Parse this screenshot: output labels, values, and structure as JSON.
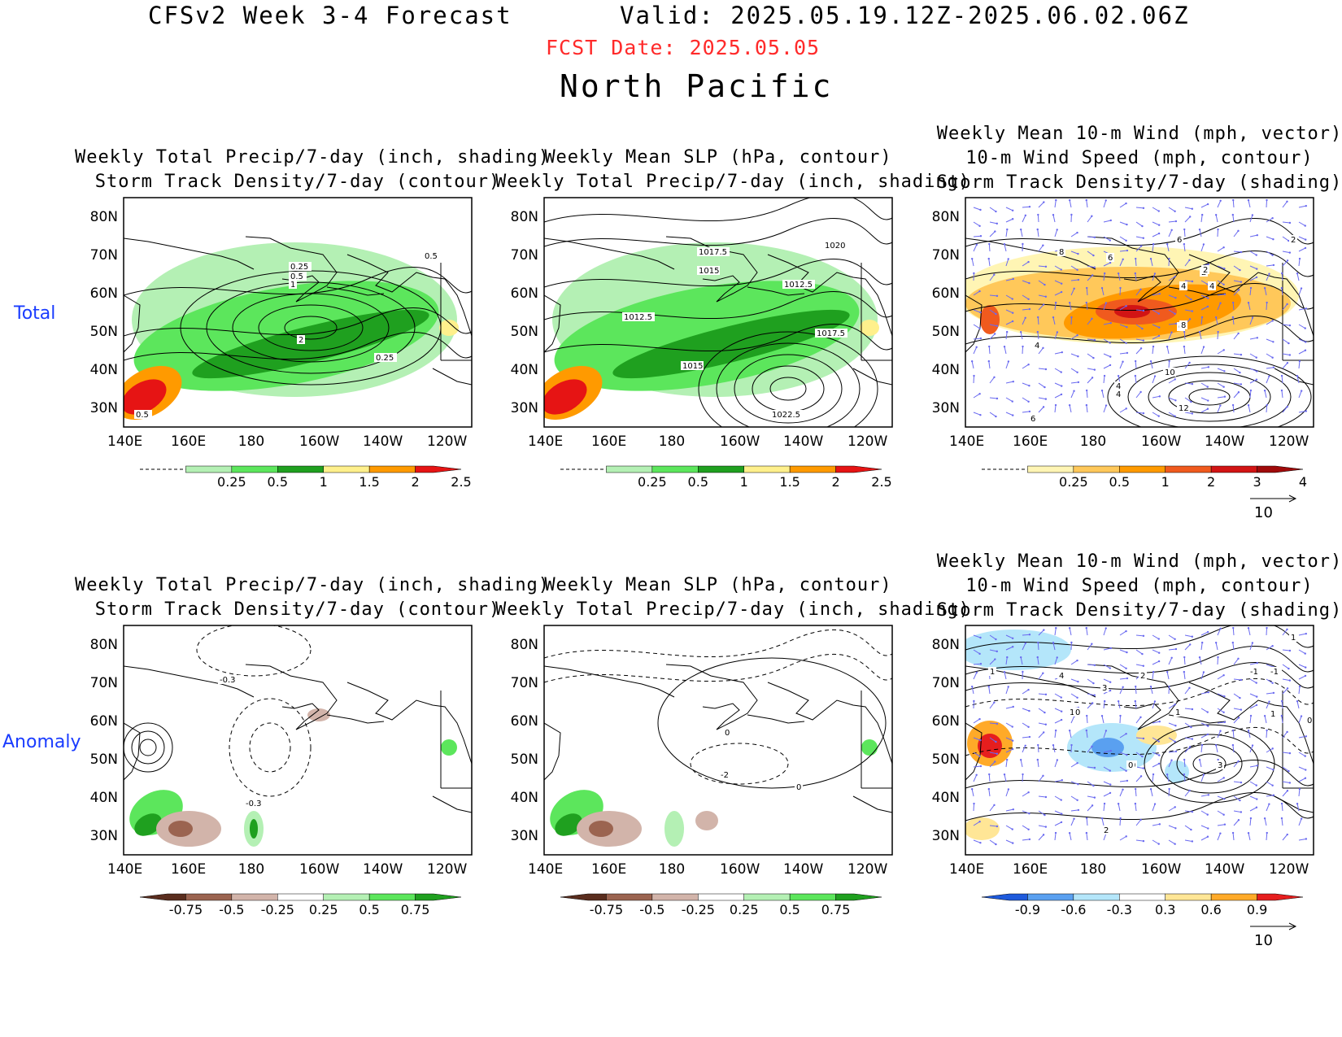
{
  "header": {
    "title": "CFSv2 Week 3-4 Forecast",
    "valid": "Valid: 2025.05.19.12Z-2025.06.02.06Z",
    "fcst_date": "FCST Date: 2025.05.05",
    "region": "North Pacific"
  },
  "rows": [
    {
      "label": "Total"
    },
    {
      "label": "Anomaly"
    }
  ],
  "axes": {
    "lon_labels": [
      "140E",
      "160E",
      "180",
      "160W",
      "140W",
      "120W"
    ],
    "lat_labels": [
      "80N",
      "70N",
      "60N",
      "50N",
      "40N",
      "30N"
    ]
  },
  "panels": [
    {
      "id": "total-precip-storm",
      "title1": "Weekly Total Precip/7-day (inch, shading)",
      "title2": "Storm Track Density/7-day (contour)",
      "title3": "",
      "contour_labels": [
        "0.25",
        "0.5",
        "1",
        "2",
        "0.25",
        "0.5",
        "0.5"
      ],
      "colorbar": {
        "labels": [
          "0.25",
          "0.5",
          "1",
          "1.5",
          "2",
          "2.5"
        ],
        "colors": [
          "#b4f0b4",
          "#5ce65c",
          "#1fa01f",
          "#fff08c",
          "#ff9a00",
          "#e61414"
        ]
      }
    },
    {
      "id": "total-slp-precip",
      "title1": "Weekly Mean SLP (hPa, contour)",
      "title2": "Weekly Total Precip/7-day (inch, shading)",
      "title3": "",
      "contour_labels": [
        "1017.5",
        "1015",
        "1020",
        "1012.5",
        "1012.5",
        "1017.5",
        "1015",
        "1022.5"
      ],
      "colorbar": {
        "labels": [
          "0.25",
          "0.5",
          "1",
          "1.5",
          "2",
          "2.5"
        ],
        "colors": [
          "#b4f0b4",
          "#5ce65c",
          "#1fa01f",
          "#fff08c",
          "#ff9a00",
          "#e61414"
        ]
      }
    },
    {
      "id": "total-wind-storm",
      "title1": "Weekly Mean 10-m Wind (mph, vector)",
      "title2": "10-m Wind Speed (mph, contour)",
      "title3": "Storm Track Density/7-day (shading)",
      "contour_labels": [
        "8",
        "6",
        "6",
        "2",
        "4",
        "2",
        "4",
        "4",
        "6",
        "8",
        "4",
        "10",
        "4",
        "12",
        "6",
        "2"
      ],
      "colorbar": {
        "labels": [
          "0.25",
          "0.5",
          "1",
          "2",
          "3",
          "4"
        ],
        "colors": [
          "#fff5b4",
          "#ffc85a",
          "#ff9a00",
          "#f05a1e",
          "#d21414",
          "#a00a0a"
        ]
      },
      "vector_ref": "10"
    },
    {
      "id": "anom-precip-storm",
      "title1": "Weekly Total Precip/7-day (inch, shading)",
      "title2": "Storm Track Density/7-day (contour)",
      "title3": "",
      "contour_labels": [
        "-0.3",
        "-0.3"
      ],
      "colorbar": {
        "labels": [
          "-0.75",
          "-0.5",
          "-0.25",
          "0.25",
          "0.5",
          "0.75"
        ],
        "colors": [
          "#5a2d1e",
          "#9b6450",
          "#d2b4aa",
          "#ffffff",
          "#b4f0b4",
          "#5ce65c",
          "#1fa01f"
        ]
      }
    },
    {
      "id": "anom-slp-precip",
      "title1": "Weekly Mean SLP (hPa, contour)",
      "title2": "Weekly Total Precip/7-day (inch, shading)",
      "title3": "",
      "contour_labels": [
        "0",
        "-2",
        "0"
      ],
      "colorbar": {
        "labels": [
          "-0.75",
          "-0.5",
          "-0.25",
          "0.25",
          "0.5",
          "0.75"
        ],
        "colors": [
          "#5a2d1e",
          "#9b6450",
          "#d2b4aa",
          "#ffffff",
          "#b4f0b4",
          "#5ce65c",
          "#1fa01f"
        ]
      }
    },
    {
      "id": "anom-wind-storm",
      "title1": "Weekly Mean 10-m Wind (mph, vector)",
      "title2": "10-m Wind Speed (mph, contour)",
      "title3": "Storm Track Density/7-day (shading)",
      "contour_labels": [
        "1",
        "4",
        "3",
        "2",
        "1",
        "0",
        "1",
        "0",
        "1",
        "-1",
        "0",
        "-1",
        "1",
        "0",
        "2",
        "3"
      ],
      "colorbar": {
        "labels": [
          "-0.9",
          "-0.6",
          "-0.3",
          "0.3",
          "0.6",
          "0.9"
        ],
        "colors": [
          "#1e5adc",
          "#5aa0f0",
          "#b4e6fa",
          "#ffffff",
          "#ffe696",
          "#ffaa28",
          "#e61e1e"
        ]
      },
      "vector_ref": "10"
    }
  ]
}
